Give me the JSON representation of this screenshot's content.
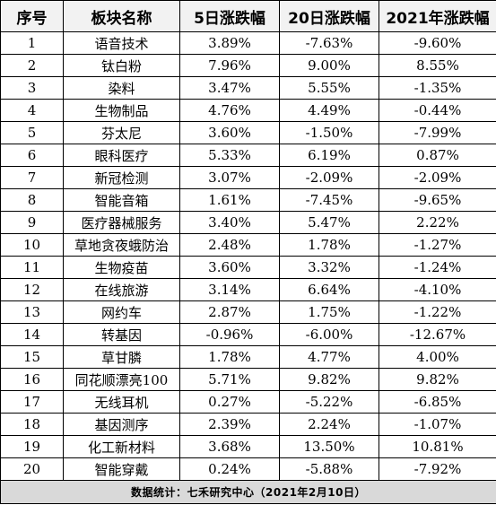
{
  "columns": [
    "序号",
    "板块名称",
    "5日涨跌幅",
    "20日涨跌幅",
    "2021年涨跌幅"
  ],
  "rows": [
    {
      "idx": "1",
      "name": "语音技术",
      "d5": "3.89%",
      "d20": "-7.63%",
      "ytd": "-9.60%"
    },
    {
      "idx": "2",
      "name": "钛白粉",
      "d5": "7.96%",
      "d20": "9.00%",
      "ytd": "8.55%"
    },
    {
      "idx": "3",
      "name": "染料",
      "d5": "3.47%",
      "d20": "5.55%",
      "ytd": "-1.35%"
    },
    {
      "idx": "4",
      "name": "生物制品",
      "d5": "4.76%",
      "d20": "4.49%",
      "ytd": "-0.44%"
    },
    {
      "idx": "5",
      "name": "芬太尼",
      "d5": "3.60%",
      "d20": "-1.50%",
      "ytd": "-7.99%"
    },
    {
      "idx": "6",
      "name": "眼科医疗",
      "d5": "5.33%",
      "d20": "6.19%",
      "ytd": "0.87%"
    },
    {
      "idx": "7",
      "name": "新冠检测",
      "d5": "3.07%",
      "d20": "-2.09%",
      "ytd": "-2.09%"
    },
    {
      "idx": "8",
      "name": "智能音箱",
      "d5": "1.61%",
      "d20": "-7.45%",
      "ytd": "-9.65%"
    },
    {
      "idx": "9",
      "name": "医疗器械服务",
      "d5": "3.40%",
      "d20": "5.47%",
      "ytd": "2.22%"
    },
    {
      "idx": "10",
      "name": "草地贪夜蛾防治",
      "d5": "2.48%",
      "d20": "1.78%",
      "ytd": "-1.27%"
    },
    {
      "idx": "11",
      "name": "生物疫苗",
      "d5": "3.60%",
      "d20": "3.32%",
      "ytd": "-1.24%"
    },
    {
      "idx": "12",
      "name": "在线旅游",
      "d5": "3.14%",
      "d20": "6.64%",
      "ytd": "-4.10%"
    },
    {
      "idx": "13",
      "name": "网约车",
      "d5": "2.87%",
      "d20": "1.75%",
      "ytd": "-1.22%"
    },
    {
      "idx": "14",
      "name": "转基因",
      "d5": "-0.96%",
      "d20": "-6.00%",
      "ytd": "-12.67%"
    },
    {
      "idx": "15",
      "name": "草甘膦",
      "d5": "1.78%",
      "d20": "4.77%",
      "ytd": "4.00%"
    },
    {
      "idx": "16",
      "name": "同花顺漂亮100",
      "d5": "5.71%",
      "d20": "9.82%",
      "ytd": "9.82%"
    },
    {
      "idx": "17",
      "name": "无线耳机",
      "d5": "0.27%",
      "d20": "-5.22%",
      "ytd": "-6.85%"
    },
    {
      "idx": "18",
      "name": "基因测序",
      "d5": "2.39%",
      "d20": "2.24%",
      "ytd": "-1.07%"
    },
    {
      "idx": "19",
      "name": "化工新材料",
      "d5": "3.68%",
      "d20": "13.50%",
      "ytd": "10.81%"
    },
    {
      "idx": "20",
      "name": "智能穿戴",
      "d5": "0.24%",
      "d20": "-5.88%",
      "ytd": "-7.92%"
    }
  ],
  "footer": "数据统计：七禾研究中心（2021年2月10日）"
}
